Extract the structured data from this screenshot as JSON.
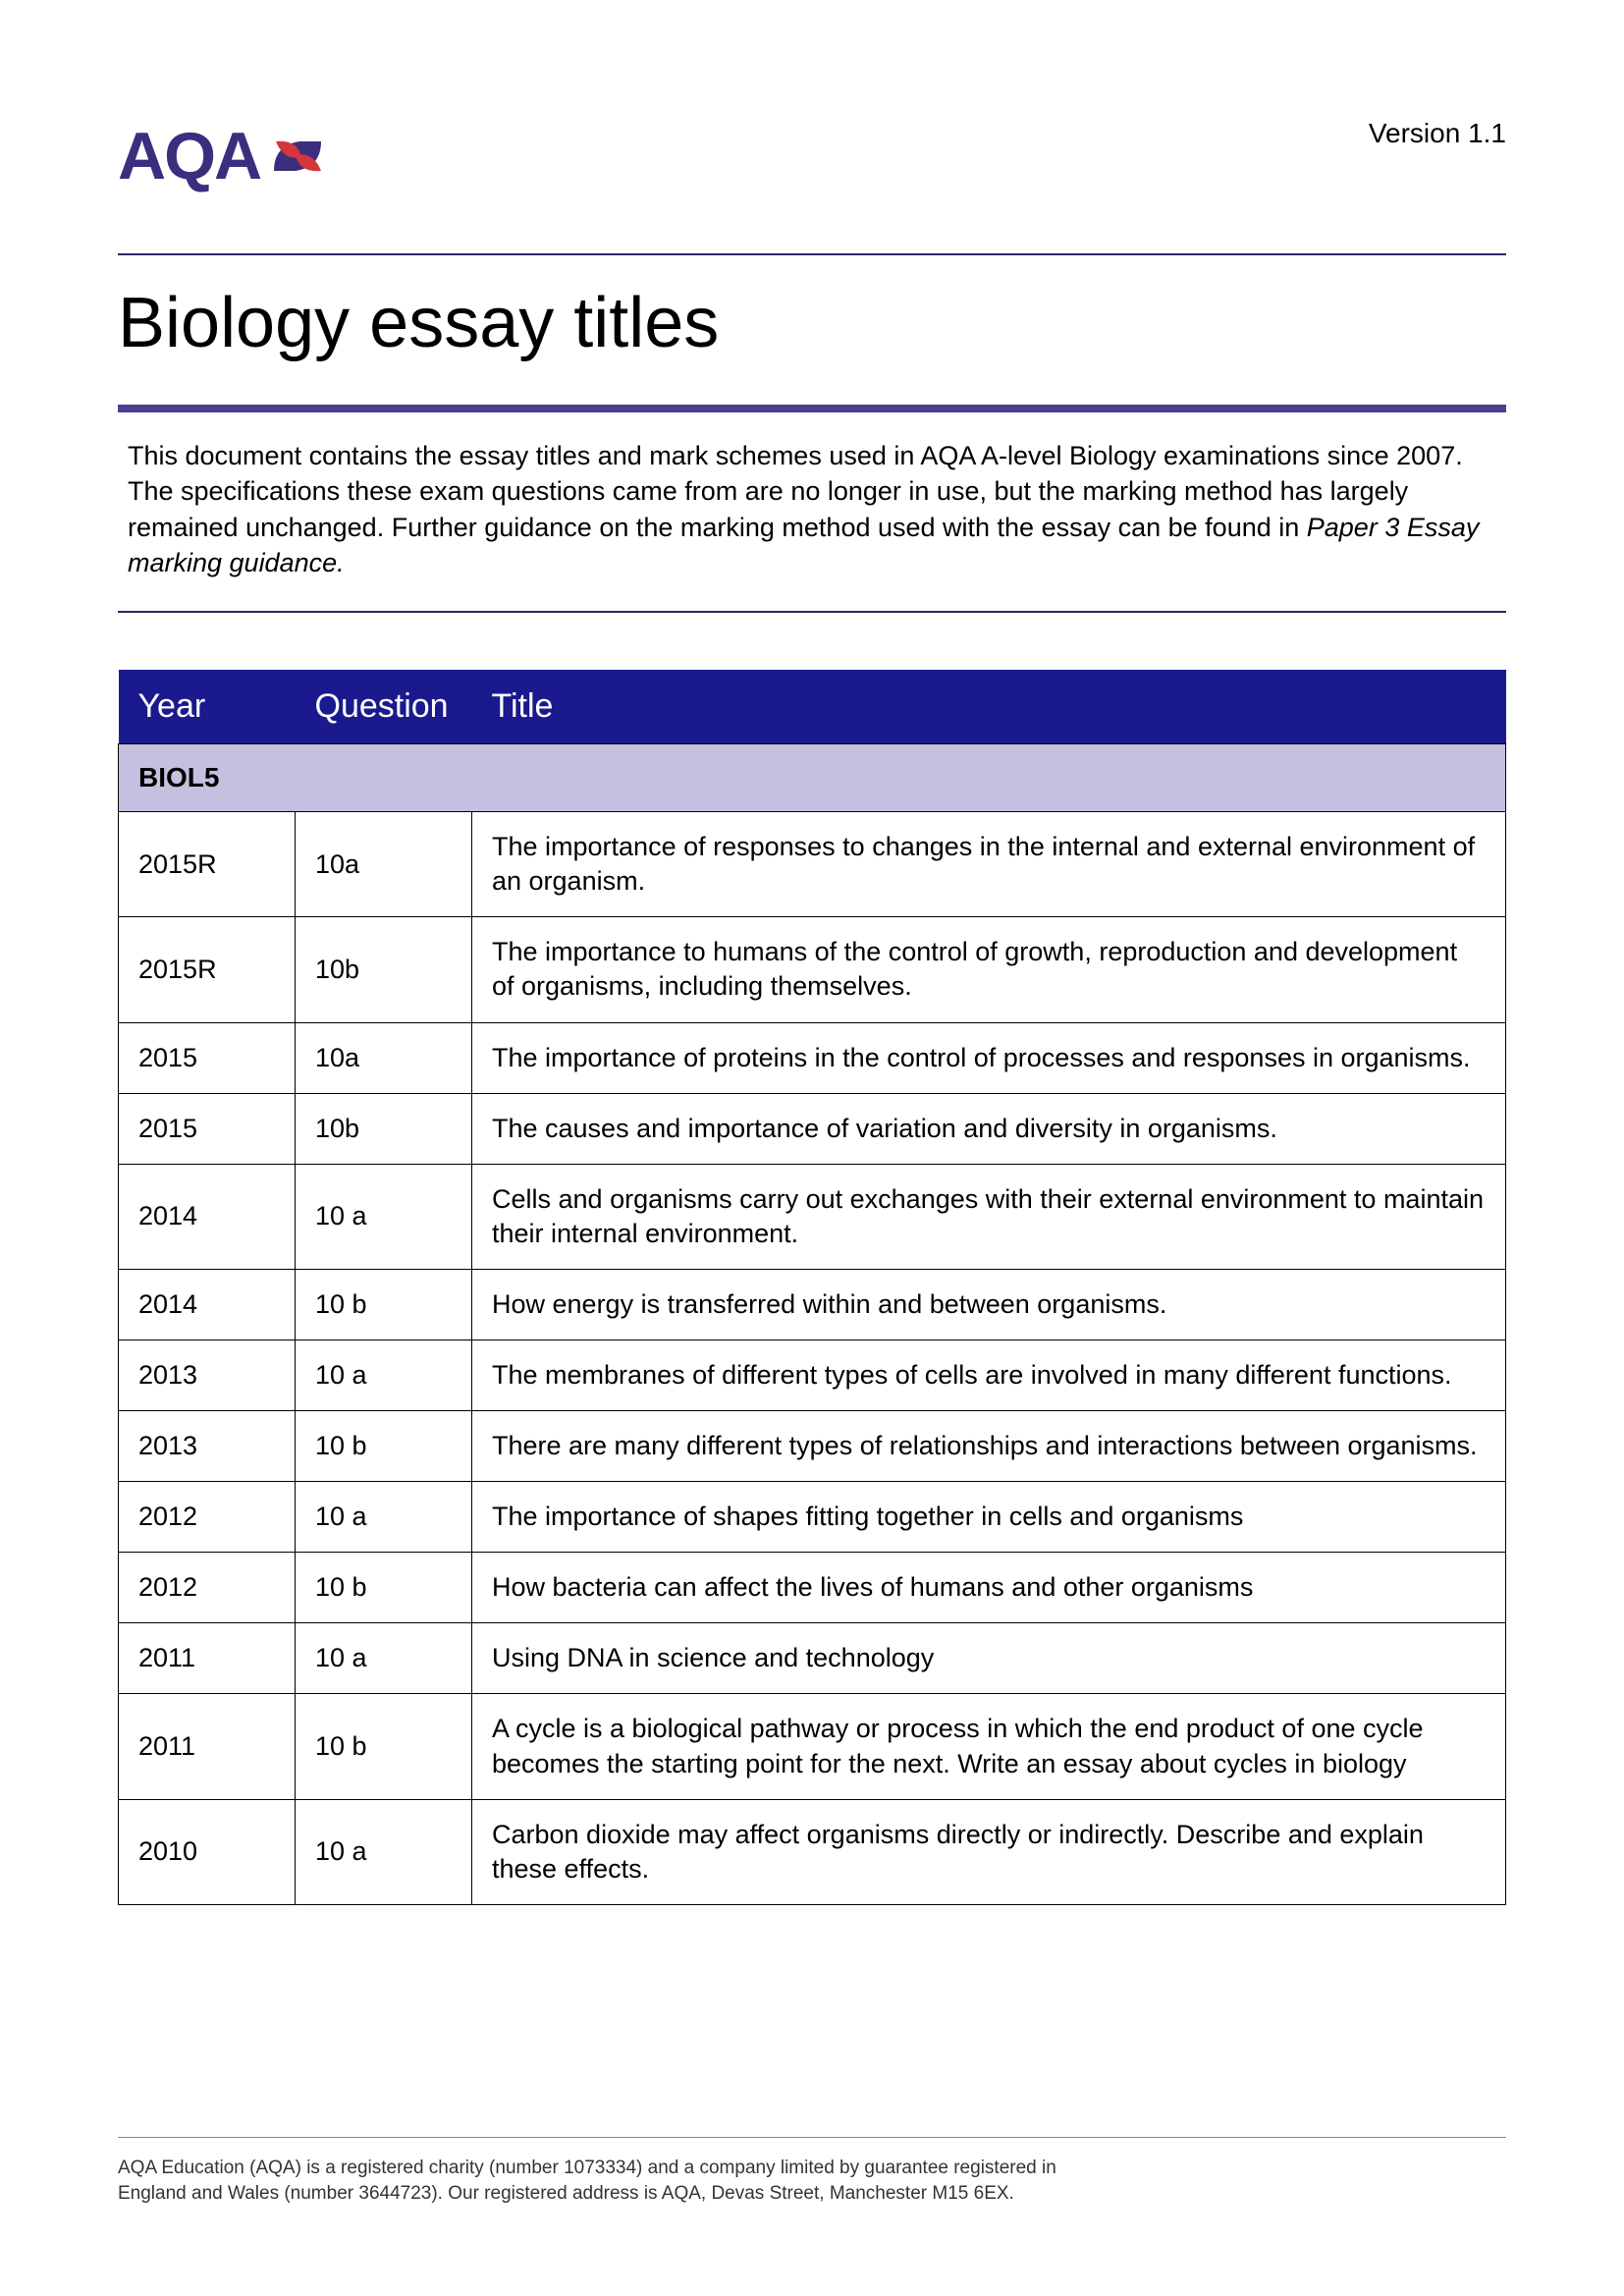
{
  "header": {
    "logo_text": "AQA",
    "version": "Version 1.1"
  },
  "title": "Biology essay titles",
  "intro": {
    "text": "This document contains the essay titles and mark schemes used in AQA A-level Biology examinations since 2007. The specifications these exam questions came from are no longer in use, but the marking method has largely remained unchanged. Further guidance on the marking method used with the essay can be found in ",
    "italic": "Paper 3 Essay marking guidance."
  },
  "table": {
    "columns": [
      "Year",
      "Question",
      "Title"
    ],
    "section": "BIOL5",
    "rows": [
      {
        "year": "2015R",
        "question": "10a",
        "title": "The importance of responses to changes in the internal and external environment of an organism."
      },
      {
        "year": "2015R",
        "question": "10b",
        "title": "The importance to humans of the control of growth, reproduction and development of organisms, including themselves."
      },
      {
        "year": "2015",
        "question": "10a",
        "title": "The importance of proteins in the control of processes and responses in organisms."
      },
      {
        "year": "2015",
        "question": "10b",
        "title": "The causes and importance of variation and diversity in organisms."
      },
      {
        "year": "2014",
        "question": "10 a",
        "title": "Cells and organisms carry out exchanges with their external environment to maintain their internal environment."
      },
      {
        "year": "2014",
        "question": "10 b",
        "title": "How energy is transferred within and between organisms."
      },
      {
        "year": "2013",
        "question": "10 a",
        "title": "The membranes of different types of cells are involved in many different functions."
      },
      {
        "year": "2013",
        "question": "10 b",
        "title": "There are many different types of relationships and interactions between organisms."
      },
      {
        "year": "2012",
        "question": "10 a",
        "title": "The importance of shapes fitting together in cells and organisms"
      },
      {
        "year": "2012",
        "question": "10 b",
        "title": "How bacteria can affect the lives of humans and other organisms"
      },
      {
        "year": "2011",
        "question": "10 a",
        "title": "Using DNA in science and technology"
      },
      {
        "year": "2011",
        "question": "10 b",
        "title": "A cycle is a biological pathway or process in which the end product of one cycle becomes the starting point for the next. Write an essay about cycles in biology"
      },
      {
        "year": "2010",
        "question": "10 a",
        "title": "Carbon dioxide may affect organisms directly or indirectly. Describe and explain these effects."
      }
    ]
  },
  "footer": {
    "line1": "AQA Education (AQA) is a registered charity (number 1073334) and a company limited by guarantee registered in",
    "line2": "England and Wales (number 3644723). Our registered address is AQA, Devas Street, Manchester M15 6EX."
  },
  "colors": {
    "brand_purple": "#3b2e7e",
    "header_bg": "#1a1a8e",
    "section_bg": "#c5bfe0",
    "logo_red": "#d4373a"
  }
}
